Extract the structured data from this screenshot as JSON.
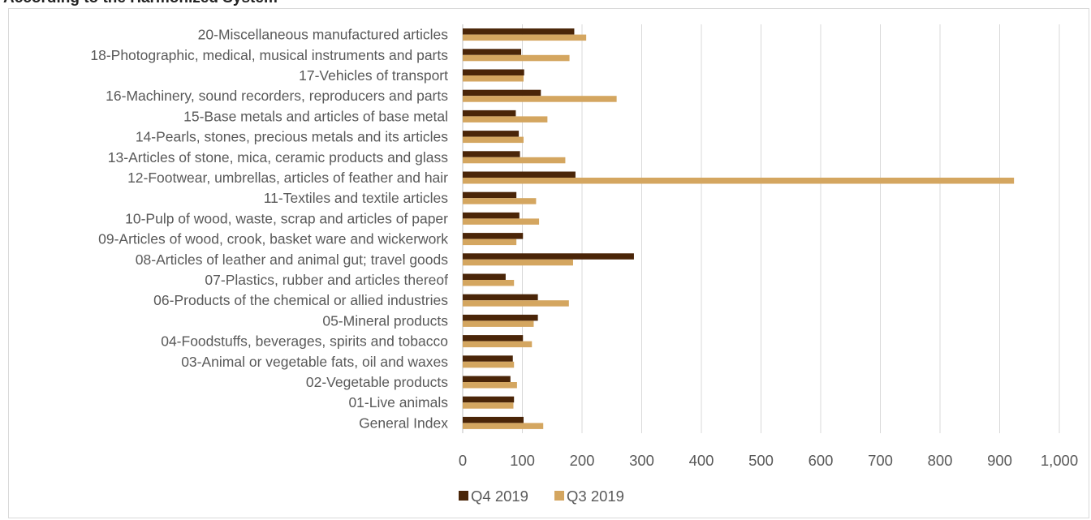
{
  "title": "According to the Harmonized System",
  "chart_data": {
    "type": "bar",
    "orientation": "horizontal",
    "title": "According to the Harmonized System",
    "xlabel": "",
    "ylabel": "",
    "xlim": [
      0,
      1000
    ],
    "xticks": [
      "0",
      "100",
      "200",
      "300",
      "400",
      "500",
      "600",
      "700",
      "800",
      "900",
      "1,000"
    ],
    "grid": "vertical",
    "legend_position": "bottom",
    "categories": [
      "20-Miscellaneous manufactured articles",
      "18-Photographic, medical, musical instruments and parts",
      "17-Vehicles of transport",
      "16-Machinery, sound recorders, reproducers and parts",
      "15-Base metals and articles of base metal",
      "14-Pearls, stones, precious metals and its articles",
      "13-Articles of stone, mica, ceramic products and glass",
      "12-Footwear, umbrellas, articles of feather and hair",
      "11-Textiles and textile articles",
      "10-Pulp of wood, waste, scrap and articles of paper",
      "09-Articles of wood, crook, basket ware and wickerwork",
      "08-Articles of leather and animal gut; travel goods",
      "07-Plastics, rubber and articles thereof",
      "06-Products of the chemical or allied industries",
      "05-Mineral products",
      "04-Foodstuffs, beverages, spirits and tobacco",
      "03-Animal or vegetable fats, oil and waxes",
      "02-Vegetable products",
      "01-Live animals",
      "General Index"
    ],
    "series": [
      {
        "name": "Q4 2019",
        "color": "#4a2508",
        "values": [
          187,
          98,
          103,
          131,
          89,
          94,
          96,
          189,
          90,
          95,
          101,
          287,
          72,
          126,
          126,
          101,
          84,
          80,
          86,
          102
        ]
      },
      {
        "name": "Q3 2019",
        "color": "#d4a660",
        "values": [
          207,
          179,
          102,
          258,
          142,
          102,
          172,
          924,
          123,
          128,
          90,
          185,
          86,
          178,
          119,
          116,
          86,
          91,
          85,
          135
        ]
      }
    ]
  }
}
